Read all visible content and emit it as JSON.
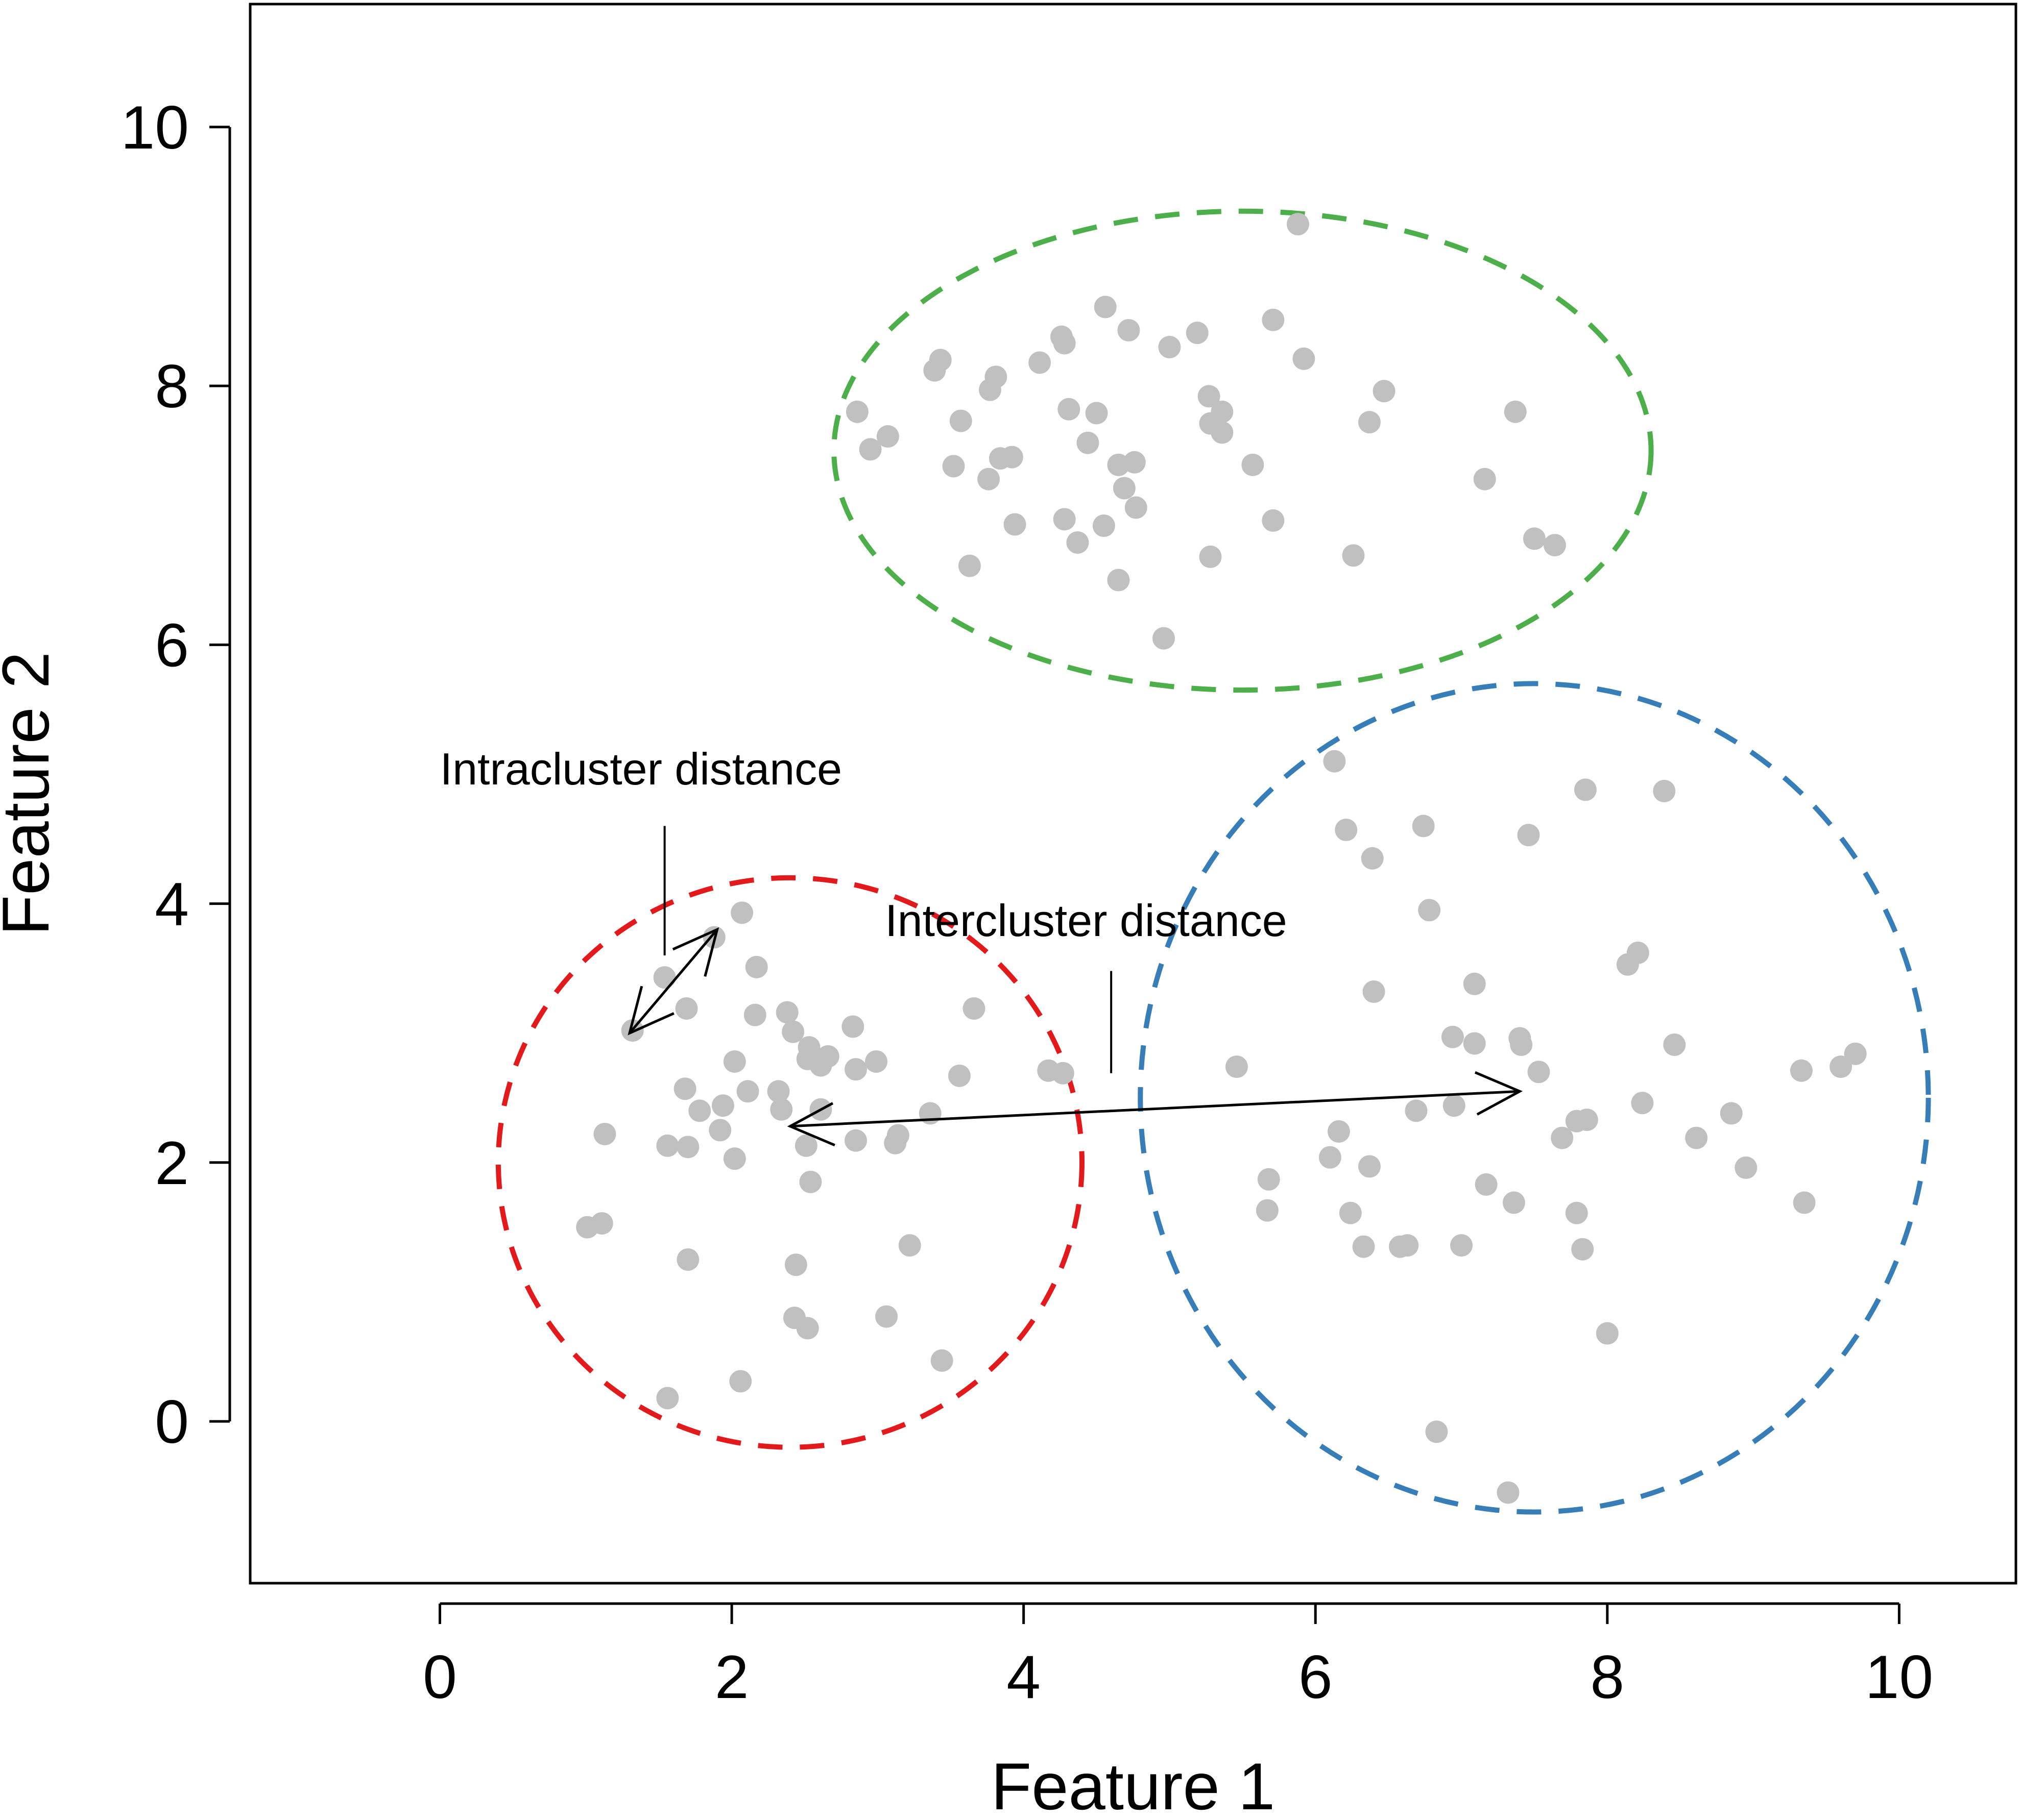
{
  "chart_data": {
    "type": "scatter",
    "title": "",
    "xlabel": "Feature 1",
    "ylabel": "Feature 2",
    "xlim": [
      -1.3,
      10.8
    ],
    "ylim": [
      -1.25,
      10.95
    ],
    "xticks": [
      0,
      2,
      4,
      6,
      8,
      10
    ],
    "yticks": [
      0,
      2,
      4,
      6,
      8,
      10
    ],
    "grid": false,
    "point_color": "#c0c0c0",
    "points": [
      [
        2.07,
        3.93
      ],
      [
        1.88,
        3.74
      ],
      [
        1.54,
        3.43
      ],
      [
        1.32,
        3.02
      ],
      [
        2.17,
        3.51
      ],
      [
        1.69,
        3.19
      ],
      [
        2.38,
        3.16
      ],
      [
        2.16,
        3.14
      ],
      [
        2.42,
        3.01
      ],
      [
        2.83,
        3.05
      ],
      [
        2.53,
        2.89
      ],
      [
        2.52,
        2.8
      ],
      [
        2.66,
        2.82
      ],
      [
        2.61,
        2.75
      ],
      [
        2.85,
        2.72
      ],
      [
        2.99,
        2.78
      ],
      [
        3.66,
        3.19
      ],
      [
        3.56,
        2.67
      ],
      [
        4.17,
        2.71
      ],
      [
        4.27,
        2.69
      ],
      [
        2.02,
        2.78
      ],
      [
        1.68,
        2.57
      ],
      [
        2.11,
        2.55
      ],
      [
        2.32,
        2.55
      ],
      [
        1.78,
        2.4
      ],
      [
        1.94,
        2.44
      ],
      [
        2.34,
        2.41
      ],
      [
        2.61,
        2.41
      ],
      [
        3.36,
        2.38
      ],
      [
        3.14,
        2.21
      ],
      [
        1.13,
        2.22
      ],
      [
        1.92,
        2.25
      ],
      [
        1.56,
        2.13
      ],
      [
        1.7,
        2.12
      ],
      [
        2.02,
        2.03
      ],
      [
        2.51,
        2.13
      ],
      [
        2.85,
        2.17
      ],
      [
        3.12,
        2.15
      ],
      [
        2.54,
        1.85
      ],
      [
        1.01,
        1.5
      ],
      [
        1.11,
        1.53
      ],
      [
        1.7,
        1.25
      ],
      [
        2.44,
        1.21
      ],
      [
        3.22,
        1.36
      ],
      [
        2.43,
        0.8
      ],
      [
        2.52,
        0.72
      ],
      [
        3.06,
        0.81
      ],
      [
        3.44,
        0.47
      ],
      [
        1.56,
        0.18
      ],
      [
        2.06,
        0.31
      ],
      [
        5.88,
        9.25
      ],
      [
        4.56,
        8.61
      ],
      [
        4.72,
        8.43
      ],
      [
        5.19,
        8.41
      ],
      [
        4.26,
        8.38
      ],
      [
        4.28,
        8.33
      ],
      [
        5.0,
        8.3
      ],
      [
        5.71,
        8.51
      ],
      [
        5.92,
        8.21
      ],
      [
        3.43,
        8.2
      ],
      [
        3.39,
        8.12
      ],
      [
        4.11,
        8.18
      ],
      [
        3.81,
        8.07
      ],
      [
        3.77,
        7.97
      ],
      [
        5.27,
        7.92
      ],
      [
        6.47,
        7.96
      ],
      [
        2.86,
        7.8
      ],
      [
        4.31,
        7.82
      ],
      [
        4.5,
        7.79
      ],
      [
        5.36,
        7.8
      ],
      [
        5.28,
        7.71
      ],
      [
        6.37,
        7.72
      ],
      [
        3.57,
        7.73
      ],
      [
        5.36,
        7.64
      ],
      [
        3.07,
        7.61
      ],
      [
        2.95,
        7.51
      ],
      [
        4.44,
        7.56
      ],
      [
        3.84,
        7.44
      ],
      [
        3.92,
        7.45
      ],
      [
        4.65,
        7.39
      ],
      [
        4.76,
        7.41
      ],
      [
        3.52,
        7.38
      ],
      [
        5.57,
        7.39
      ],
      [
        7.37,
        7.8
      ],
      [
        3.76,
        7.28
      ],
      [
        4.69,
        7.21
      ],
      [
        4.77,
        7.06
      ],
      [
        7.16,
        7.28
      ],
      [
        4.28,
        6.97
      ],
      [
        4.55,
        6.92
      ],
      [
        3.94,
        6.93
      ],
      [
        5.71,
        6.96
      ],
      [
        4.37,
        6.79
      ],
      [
        7.5,
        6.82
      ],
      [
        7.64,
        6.77
      ],
      [
        3.63,
        6.61
      ],
      [
        5.28,
        6.68
      ],
      [
        6.26,
        6.69
      ],
      [
        4.65,
        6.5
      ],
      [
        4.96,
        6.05
      ],
      [
        6.13,
        5.1
      ],
      [
        7.85,
        4.88
      ],
      [
        8.39,
        4.87
      ],
      [
        6.21,
        4.57
      ],
      [
        6.74,
        4.6
      ],
      [
        7.46,
        4.53
      ],
      [
        6.39,
        4.35
      ],
      [
        6.78,
        3.95
      ],
      [
        8.21,
        3.62
      ],
      [
        8.14,
        3.53
      ],
      [
        6.4,
        3.32
      ],
      [
        7.09,
        3.38
      ],
      [
        6.94,
        2.97
      ],
      [
        7.09,
        2.92
      ],
      [
        7.41,
        2.91
      ],
      [
        7.4,
        2.96
      ],
      [
        8.46,
        2.91
      ],
      [
        7.53,
        2.7
      ],
      [
        5.46,
        2.74
      ],
      [
        9.33,
        2.71
      ],
      [
        9.6,
        2.74
      ],
      [
        9.7,
        2.84
      ],
      [
        6.69,
        2.4
      ],
      [
        6.95,
        2.44
      ],
      [
        8.24,
        2.46
      ],
      [
        8.85,
        2.38
      ],
      [
        7.79,
        2.32
      ],
      [
        7.86,
        2.33
      ],
      [
        6.16,
        2.24
      ],
      [
        7.69,
        2.19
      ],
      [
        8.61,
        2.19
      ],
      [
        6.1,
        2.04
      ],
      [
        6.37,
        1.97
      ],
      [
        8.95,
        1.96
      ],
      [
        5.68,
        1.87
      ],
      [
        7.17,
        1.83
      ],
      [
        9.35,
        1.69
      ],
      [
        6.24,
        1.61
      ],
      [
        5.67,
        1.63
      ],
      [
        7.36,
        1.69
      ],
      [
        7.79,
        1.61
      ],
      [
        6.33,
        1.35
      ],
      [
        6.58,
        1.35
      ],
      [
        6.63,
        1.36
      ],
      [
        7.0,
        1.36
      ],
      [
        7.83,
        1.33
      ],
      [
        8.0,
        0.68
      ],
      [
        6.83,
        -0.08
      ],
      [
        7.32,
        -0.55
      ]
    ],
    "clusters": [
      {
        "color": "#e31a1c",
        "center": [
          2.4,
          2.0
        ],
        "rx": 2.0,
        "ry": 2.2
      },
      {
        "color": "#4daf4a",
        "center": [
          5.5,
          7.5
        ],
        "rx": 2.8,
        "ry": 1.85
      },
      {
        "color": "#377eb8",
        "center": [
          7.5,
          2.5
        ],
        "rx": 2.7,
        "ry": 3.2
      }
    ],
    "annotations": [
      {
        "text": "Intracluster distance",
        "anchor": [
          1.54,
          4.92
        ],
        "pointer_from": [
          1.54,
          4.6
        ],
        "pointer_to": [
          1.54,
          3.6
        ],
        "arrow": {
          "from": [
            1.3,
            3.0
          ],
          "to": [
            1.9,
            3.8
          ],
          "double": true
        }
      },
      {
        "text": "Intercluster distance",
        "anchor": [
          3.05,
          3.75
        ],
        "pointer_from": [
          4.6,
          3.48
        ],
        "pointer_to": [
          4.6,
          2.69
        ],
        "arrow": {
          "from": [
            2.4,
            2.28
          ],
          "to": [
            7.4,
            2.55
          ],
          "double": true
        }
      }
    ]
  }
}
